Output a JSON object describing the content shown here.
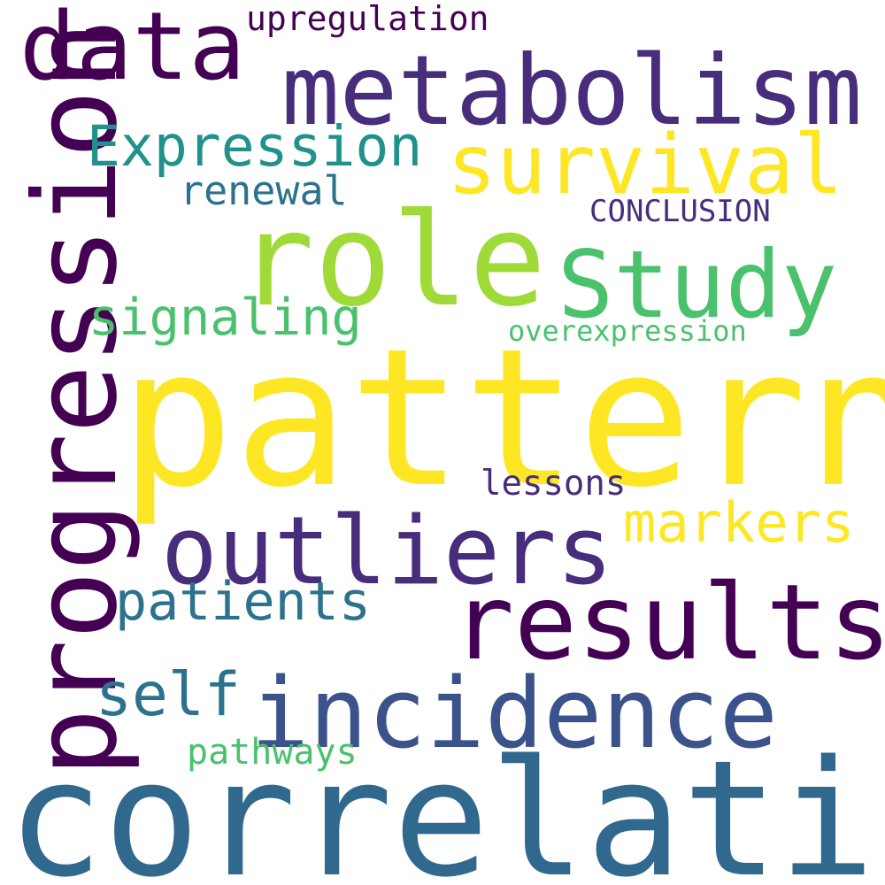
{
  "words": {
    "pattern": {
      "text": "pattern",
      "color": "#fde725"
    },
    "correlation": {
      "text": "correlation",
      "color": "#31688e"
    },
    "metabolism": {
      "text": "metabolism",
      "color": "#472d7b"
    },
    "role": {
      "text": "role",
      "color": "#a0da39"
    },
    "progression": {
      "text": "progression",
      "color": "#440154"
    },
    "outliers": {
      "text": "outliers",
      "color": "#472d7b"
    },
    "results": {
      "text": "results",
      "color": "#440154"
    },
    "incidence": {
      "text": "incidence",
      "color": "#3b528b"
    },
    "data": {
      "text": "data",
      "color": "#440154"
    },
    "survival": {
      "text": "survival",
      "color": "#fde725"
    },
    "study": {
      "text": "Study",
      "color": "#4ac16d"
    },
    "expression": {
      "text": "Expression",
      "color": "#21918c"
    },
    "patients": {
      "text": "patients",
      "color": "#2c728e"
    },
    "markers": {
      "text": "markers",
      "color": "#fde725"
    },
    "self": {
      "text": "self",
      "color": "#2c728e"
    },
    "signaling": {
      "text": "signaling",
      "color": "#4ac16d"
    },
    "renewal": {
      "text": "renewal",
      "color": "#2c728e"
    },
    "upregulation": {
      "text": "upregulation",
      "color": "#440154"
    },
    "conclusion": {
      "text": "CONCLUSION",
      "color": "#472d7b"
    },
    "overexpression": {
      "text": "overexpression",
      "color": "#4ac16d"
    },
    "lessons": {
      "text": "lessons",
      "color": "#472d7b"
    },
    "pathways": {
      "text": "pathways",
      "color": "#4ac16d"
    }
  }
}
